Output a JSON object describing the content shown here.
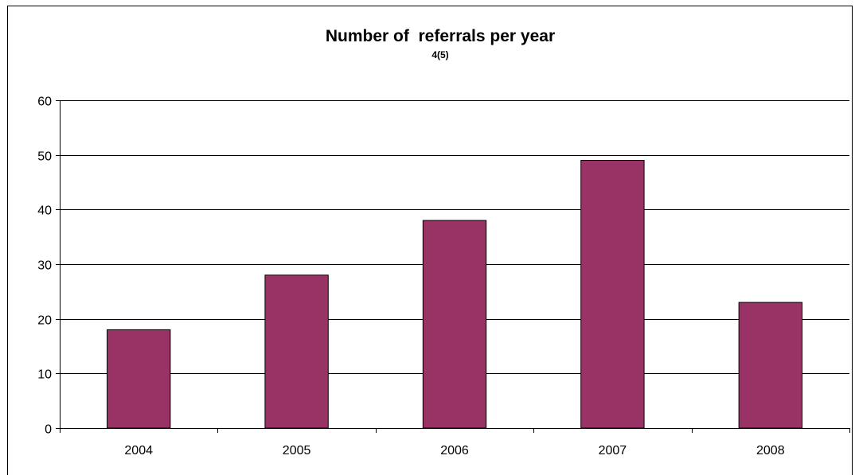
{
  "chart_data": {
    "type": "bar",
    "title": "Number of  referrals per year",
    "subtitle": "4(5)",
    "categories": [
      "2004",
      "2005",
      "2006",
      "2007",
      "2008"
    ],
    "values": [
      18,
      28,
      38,
      49,
      23
    ],
    "ylim": [
      0,
      60
    ],
    "yticks": [
      0,
      10,
      20,
      30,
      40,
      50,
      60
    ],
    "grid": true,
    "legend": "none",
    "bar_color": "#993366",
    "grid_color": "#000000"
  }
}
